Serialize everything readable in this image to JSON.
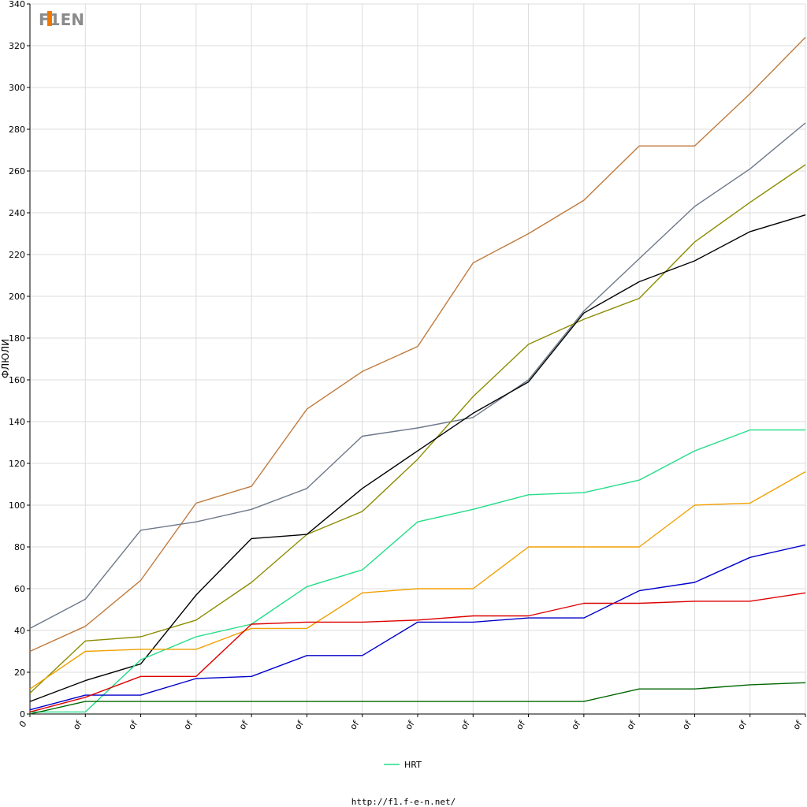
{
  "chart_data": {
    "type": "line",
    "ylabel": "ФЛЮЛИ",
    "ylim": [
      0,
      340
    ],
    "yticks": [
      0,
      20,
      40,
      60,
      80,
      100,
      120,
      140,
      160,
      180,
      200,
      220,
      240,
      260,
      280,
      300,
      320,
      340
    ],
    "grid": true,
    "legend_position": "bottom-center",
    "x_tick_labels": [
      "0",
      "of",
      "of",
      "of",
      "of",
      "of",
      "of",
      "of",
      "of",
      "of",
      "of",
      "of",
      "of",
      "of",
      "of"
    ],
    "x": [
      0,
      1,
      2,
      3,
      4,
      5,
      6,
      7,
      8,
      9,
      10,
      11,
      12,
      13,
      14
    ],
    "series": [
      {
        "color": "#c07a3c",
        "values": [
          30,
          42,
          64,
          101,
          109,
          146,
          164,
          176,
          216,
          230,
          246,
          272,
          272,
          297,
          324
        ]
      },
      {
        "color": "#6d7888",
        "values": [
          41,
          55,
          88,
          92,
          98,
          108,
          133,
          137,
          142,
          160,
          193,
          218,
          243,
          261,
          283
        ]
      },
      {
        "color": "#8b8b00",
        "values": [
          10,
          35,
          37,
          45,
          63,
          86,
          97,
          122,
          152,
          177,
          189,
          199,
          226,
          245,
          263
        ]
      },
      {
        "color": "#000000",
        "values": [
          6,
          16,
          24,
          57,
          84,
          86,
          108,
          126,
          144,
          159,
          192,
          207,
          217,
          231,
          239
        ]
      },
      {
        "name": "HRT",
        "color": "#22dd88",
        "values": [
          1,
          1,
          26,
          37,
          43,
          61,
          69,
          92,
          98,
          105,
          106,
          112,
          126,
          136,
          136
        ]
      },
      {
        "color": "#f0a000",
        "values": [
          12,
          30,
          31,
          31,
          41,
          41,
          58,
          60,
          60,
          80,
          80,
          80,
          100,
          101,
          116
        ]
      },
      {
        "color": "#0000cc",
        "values": [
          2,
          9,
          9,
          17,
          18,
          28,
          28,
          44,
          44,
          46,
          46,
          59,
          63,
          75,
          81
        ]
      },
      {
        "color": "#dd0000",
        "values": [
          1,
          8,
          18,
          18,
          43,
          44,
          44,
          45,
          47,
          47,
          53,
          53,
          54,
          54,
          58
        ]
      },
      {
        "color": "#006600",
        "values": [
          0,
          6,
          6,
          6,
          6,
          6,
          6,
          6,
          6,
          6,
          6,
          12,
          12,
          14,
          15
        ]
      }
    ]
  },
  "legend": {
    "label": "HRT",
    "color": "#22dd88"
  },
  "logo": {
    "text": "F1EN"
  },
  "footer": {
    "url": "http://f1.f-e-n.net/"
  }
}
